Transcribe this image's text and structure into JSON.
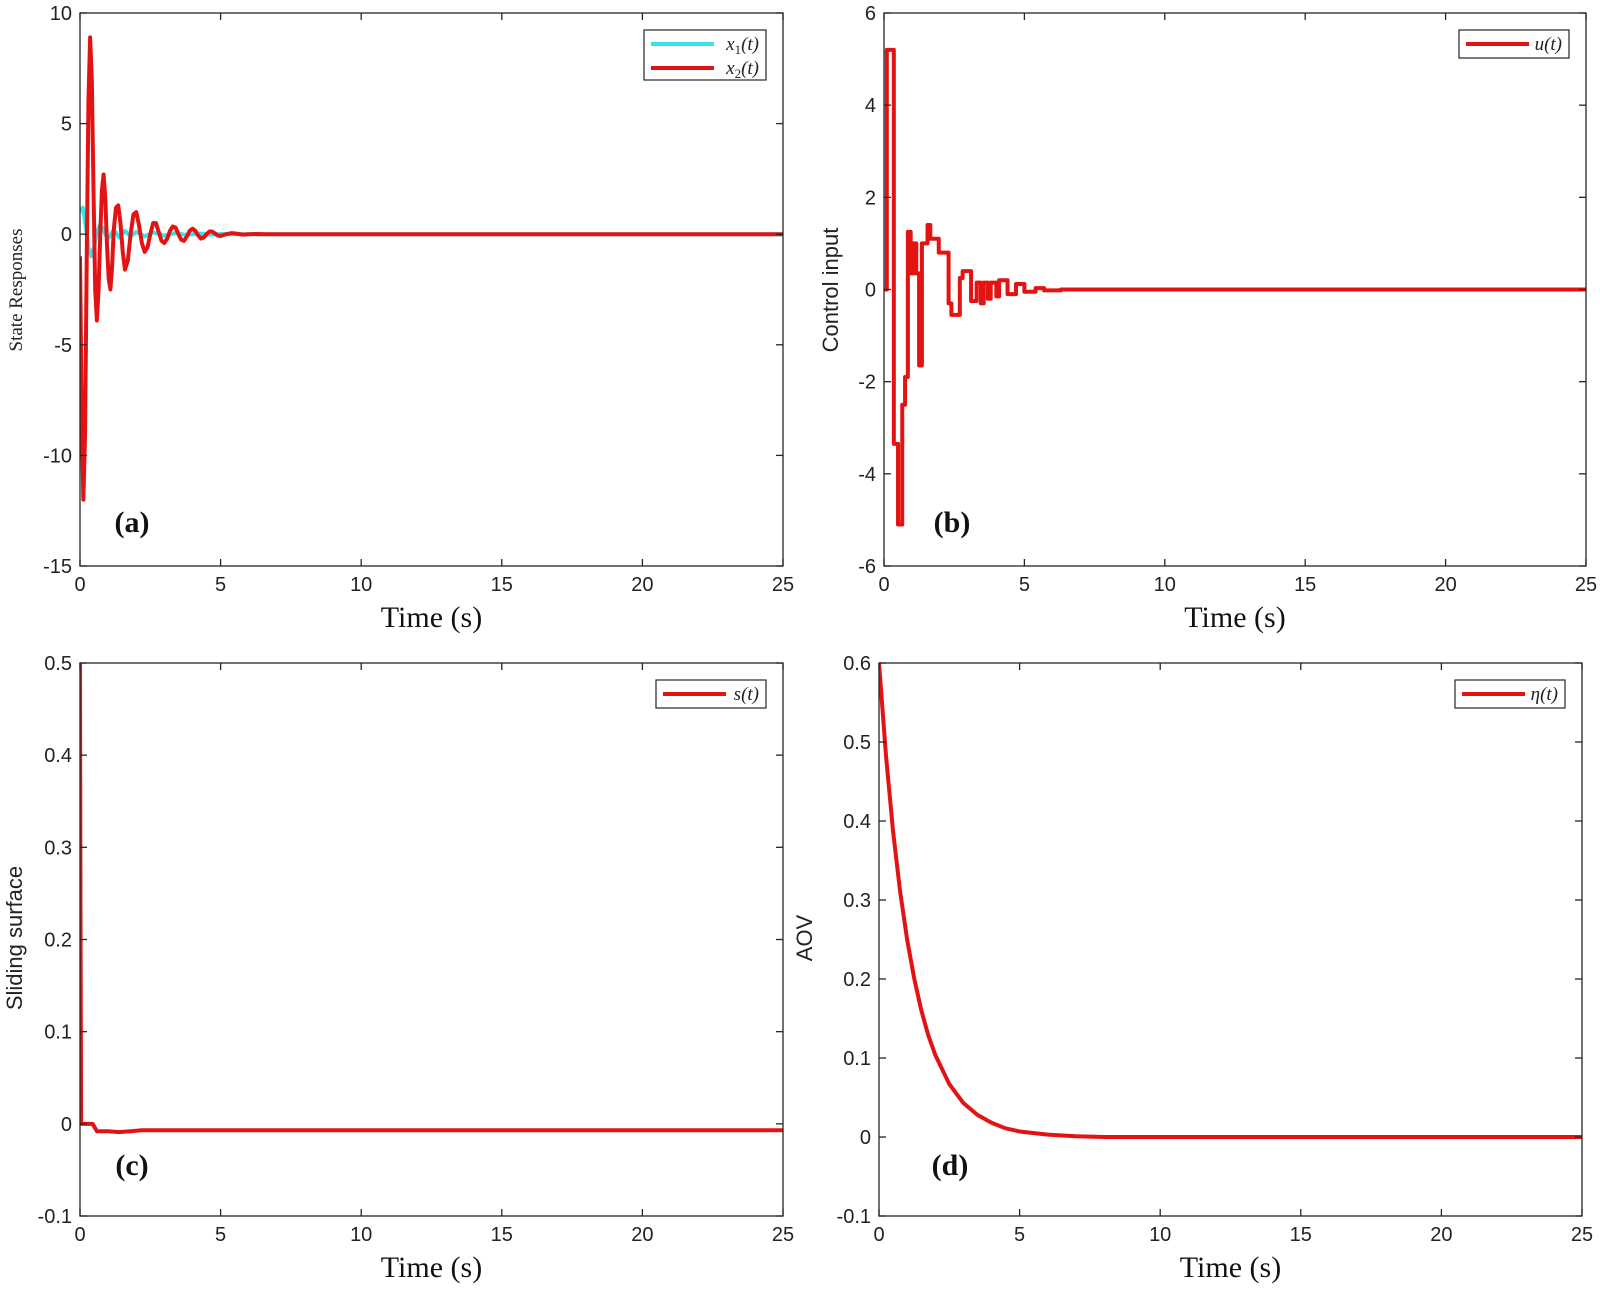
{
  "colors": {
    "red": "#e41313",
    "cyan": "#34e3ec",
    "axis": "#262626",
    "background": "#ffffff"
  },
  "chart_data": [
    {
      "type": "line",
      "panel_label": "(a)",
      "xlabel": "Time (s)",
      "ylabel": "State Responses",
      "xlim": [
        0,
        25
      ],
      "ylim": [
        -15,
        10
      ],
      "xticks": [
        0,
        5,
        10,
        15,
        20,
        25
      ],
      "yticks": [
        -15,
        -10,
        -5,
        0,
        5,
        10
      ],
      "xtick_labels": [
        "0",
        "5",
        "10",
        "15",
        "20",
        "25"
      ],
      "ytick_labels": [
        "-15",
        "-10",
        "-5",
        "0",
        "5",
        "10"
      ],
      "legend_position": "top-right",
      "series": [
        {
          "name": "x1(t)",
          "legend_base": "x",
          "legend_sub": "1",
          "legend_arg": "(t)",
          "color": "#34e3ec",
          "x": [
            0,
            0.1,
            0.2,
            0.3,
            0.4,
            0.5,
            0.6,
            0.7,
            0.8,
            0.9,
            1.0,
            1.2,
            1.4,
            1.6,
            1.8,
            2.0,
            2.3,
            2.6,
            3.0,
            3.4,
            3.8,
            4.2,
            4.6,
            5.0,
            5.5,
            6.5,
            8,
            12,
            25
          ],
          "y": [
            1.0,
            1.2,
            0.4,
            -0.6,
            -1.0,
            -0.6,
            0.1,
            0.4,
            0.3,
            0.0,
            -0.2,
            0.2,
            -0.15,
            0.15,
            -0.1,
            0.1,
            -0.1,
            0.08,
            -0.06,
            0.05,
            -0.04,
            0.03,
            -0.02,
            0.01,
            0.0,
            0.0,
            0.0,
            0.0,
            0.0
          ]
        },
        {
          "name": "x2(t)",
          "legend_base": "x",
          "legend_sub": "2",
          "legend_arg": "(t)",
          "color": "#e41313",
          "x": [
            0,
            0.06,
            0.12,
            0.18,
            0.24,
            0.3,
            0.36,
            0.42,
            0.48,
            0.54,
            0.6,
            0.66,
            0.72,
            0.78,
            0.84,
            0.9,
            0.96,
            1.02,
            1.08,
            1.14,
            1.2,
            1.28,
            1.36,
            1.44,
            1.52,
            1.6,
            1.7,
            1.8,
            1.9,
            2.0,
            2.1,
            2.2,
            2.3,
            2.4,
            2.5,
            2.6,
            2.7,
            2.8,
            2.9,
            3.0,
            3.1,
            3.2,
            3.3,
            3.4,
            3.5,
            3.6,
            3.7,
            3.8,
            3.9,
            4.0,
            4.1,
            4.2,
            4.3,
            4.4,
            4.5,
            4.6,
            4.7,
            4.8,
            4.9,
            5.0,
            5.2,
            5.4,
            5.6,
            5.8,
            6.0,
            6.3,
            6.6,
            6.9,
            7.2,
            8,
            10,
            25
          ],
          "y": [
            -1.0,
            -8.0,
            -12.0,
            -9.0,
            -1.0,
            6.0,
            8.9,
            7.0,
            2.0,
            -2.5,
            -3.9,
            -2.5,
            0.0,
            2.0,
            2.7,
            1.6,
            -0.5,
            -2.0,
            -2.5,
            -1.5,
            0.2,
            1.2,
            1.3,
            0.5,
            -0.8,
            -1.6,
            -1.2,
            0.0,
            0.9,
            1.0,
            0.4,
            -0.4,
            -0.8,
            -0.6,
            0.0,
            0.5,
            0.5,
            0.1,
            -0.3,
            -0.4,
            -0.2,
            0.15,
            0.35,
            0.3,
            0.0,
            -0.25,
            -0.3,
            -0.1,
            0.15,
            0.25,
            0.15,
            -0.05,
            -0.2,
            -0.15,
            0.0,
            0.12,
            0.12,
            0.03,
            -0.06,
            -0.08,
            0.0,
            0.05,
            0.02,
            -0.02,
            0.0,
            0.01,
            0.0,
            0.0,
            0.0,
            0.0,
            0.0,
            0.0
          ]
        }
      ]
    },
    {
      "type": "line",
      "panel_label": "(b)",
      "xlabel": "Time (s)",
      "ylabel": "Control input",
      "xlim": [
        0,
        25
      ],
      "ylim": [
        -6,
        6
      ],
      "xticks": [
        0,
        5,
        10,
        15,
        20,
        25
      ],
      "yticks": [
        -6,
        -4,
        -2,
        0,
        2,
        4,
        6
      ],
      "xtick_labels": [
        "0",
        "5",
        "10",
        "15",
        "20",
        "25"
      ],
      "ytick_labels": [
        "-6",
        "-4",
        "-2",
        "0",
        "2",
        "4",
        "6"
      ],
      "legend_position": "top-right",
      "series": [
        {
          "name": "u(t)",
          "legend_base": "u",
          "legend_sub": "",
          "legend_arg": "(t)",
          "color": "#e41313",
          "x": [
            0,
            0.1,
            0.1,
            0.35,
            0.35,
            0.5,
            0.5,
            0.65,
            0.65,
            0.75,
            0.75,
            0.85,
            0.85,
            0.95,
            0.95,
            1.05,
            1.05,
            1.15,
            1.15,
            1.25,
            1.25,
            1.35,
            1.35,
            1.55,
            1.55,
            1.65,
            1.65,
            1.95,
            1.95,
            2.3,
            2.3,
            2.4,
            2.4,
            2.7,
            2.7,
            2.8,
            2.8,
            3.1,
            3.1,
            3.3,
            3.3,
            3.45,
            3.45,
            3.55,
            3.55,
            3.7,
            3.7,
            3.8,
            3.8,
            4.0,
            4.0,
            4.1,
            4.1,
            4.4,
            4.4,
            4.7,
            4.7,
            5.0,
            5.0,
            5.4,
            5.4,
            5.7,
            5.7,
            6.3,
            6.3,
            25
          ],
          "y": [
            0.0,
            0.0,
            5.2,
            5.2,
            -3.35,
            -3.35,
            -5.1,
            -5.1,
            -2.5,
            -2.5,
            -1.9,
            -1.9,
            1.25,
            1.25,
            0.35,
            0.35,
            1.0,
            1.0,
            0.35,
            0.35,
            -1.65,
            -1.65,
            1.0,
            1.0,
            1.4,
            1.4,
            1.1,
            1.1,
            0.8,
            0.8,
            -0.3,
            -0.3,
            -0.55,
            -0.55,
            0.25,
            0.25,
            0.4,
            0.4,
            -0.25,
            -0.25,
            0.15,
            0.15,
            -0.3,
            -0.3,
            0.15,
            0.15,
            -0.2,
            -0.2,
            0.15,
            0.15,
            -0.15,
            -0.15,
            0.2,
            0.2,
            -0.1,
            -0.1,
            0.12,
            0.12,
            -0.05,
            -0.05,
            0.03,
            0.03,
            -0.02,
            -0.02,
            0.0,
            0.0
          ]
        }
      ]
    },
    {
      "type": "line",
      "panel_label": "(c)",
      "xlabel": "Time (s)",
      "ylabel": "Sliding surface",
      "xlim": [
        0,
        25
      ],
      "ylim": [
        -0.1,
        0.5
      ],
      "xticks": [
        0,
        5,
        10,
        15,
        20,
        25
      ],
      "yticks": [
        -0.1,
        0,
        0.1,
        0.2,
        0.3,
        0.4,
        0.5
      ],
      "xtick_labels": [
        "0",
        "5",
        "10",
        "15",
        "20",
        "25"
      ],
      "ytick_labels": [
        "-0.1",
        "0",
        "0.1",
        "0.2",
        "0.3",
        "0.4",
        "0.5"
      ],
      "legend_position": "top-right",
      "series": [
        {
          "name": "s(t)",
          "legend_base": "s",
          "legend_sub": "",
          "legend_arg": "(t)",
          "color": "#e41313",
          "x": [
            0,
            0.02,
            0.04,
            0.1,
            0.45,
            0.6,
            1.0,
            1.4,
            1.8,
            2.2,
            3.0,
            25
          ],
          "y": [
            0.5,
            0.2,
            0.0,
            0.0,
            0.0,
            -0.008,
            -0.008,
            -0.009,
            -0.008,
            -0.007,
            -0.007,
            -0.007
          ]
        }
      ]
    },
    {
      "type": "line",
      "panel_label": "(d)",
      "xlabel": "Time (s)",
      "ylabel": "AOV",
      "xlim": [
        0,
        25
      ],
      "ylim": [
        -0.1,
        0.6
      ],
      "xticks": [
        0,
        5,
        10,
        15,
        20,
        25
      ],
      "yticks": [
        -0.1,
        0,
        0.1,
        0.2,
        0.3,
        0.4,
        0.5,
        0.6
      ],
      "xtick_labels": [
        "0",
        "5",
        "10",
        "15",
        "20",
        "25"
      ],
      "ytick_labels": [
        "-0.1",
        "0",
        "0.1",
        "0.2",
        "0.3",
        "0.4",
        "0.5",
        "0.6"
      ],
      "legend_position": "top-right",
      "series": [
        {
          "name": "η(t)",
          "legend_base": "η",
          "legend_sub": "",
          "legend_arg": "(t)",
          "color": "#e41313",
          "x": [
            0,
            0.25,
            0.5,
            0.75,
            1.0,
            1.25,
            1.5,
            1.75,
            2.0,
            2.5,
            3.0,
            3.5,
            4.0,
            4.5,
            5.0,
            6.0,
            7.0,
            8.0,
            10,
            15,
            20,
            25
          ],
          "y": [
            0.6,
            0.482,
            0.387,
            0.311,
            0.25,
            0.201,
            0.161,
            0.129,
            0.104,
            0.067,
            0.043,
            0.028,
            0.018,
            0.011,
            0.007,
            0.003,
            0.001,
            0.0,
            0.0,
            0.0,
            0.0,
            0.0
          ]
        }
      ]
    }
  ]
}
